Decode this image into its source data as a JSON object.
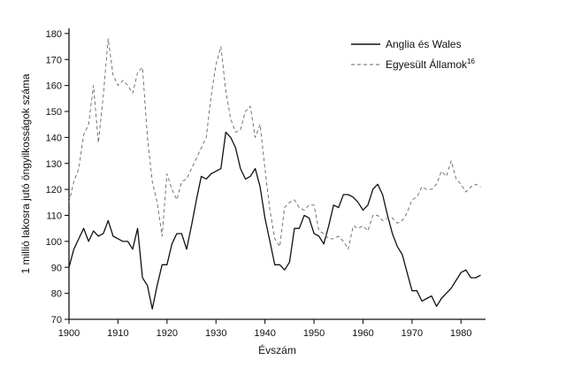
{
  "chart_data": {
    "type": "line",
    "xlabel": "Évszám",
    "ylabel": "1 millió lakosra jutó öngyilkosságok száma",
    "xlim": [
      1900,
      1985
    ],
    "ylim": [
      70,
      182
    ],
    "x_ticks": [
      1900,
      1910,
      1920,
      1930,
      1940,
      1950,
      1960,
      1970,
      1980
    ],
    "y_ticks": [
      70,
      80,
      90,
      100,
      110,
      120,
      130,
      140,
      150,
      160,
      170,
      180
    ],
    "legend_position": "top-right",
    "series": [
      {
        "name": "Anglia és Wales",
        "style": "solid",
        "color": "#111111",
        "x": [
          1900,
          1901,
          1902,
          1903,
          1904,
          1905,
          1906,
          1907,
          1908,
          1909,
          1910,
          1911,
          1912,
          1913,
          1914,
          1915,
          1916,
          1917,
          1918,
          1919,
          1920,
          1921,
          1922,
          1923,
          1924,
          1925,
          1926,
          1927,
          1928,
          1929,
          1930,
          1931,
          1932,
          1933,
          1934,
          1935,
          1936,
          1937,
          1938,
          1939,
          1940,
          1941,
          1942,
          1943,
          1944,
          1945,
          1946,
          1947,
          1948,
          1949,
          1950,
          1951,
          1952,
          1953,
          1954,
          1955,
          1956,
          1957,
          1958,
          1959,
          1960,
          1961,
          1962,
          1963,
          1964,
          1965,
          1966,
          1967,
          1968,
          1969,
          1970,
          1971,
          1972,
          1973,
          1974,
          1975,
          1976,
          1977,
          1978,
          1979,
          1980,
          1981,
          1982,
          1983,
          1984
        ],
        "y": [
          90,
          97,
          101,
          105,
          100,
          104,
          102,
          103,
          108,
          102,
          101,
          100,
          100,
          97,
          105,
          86,
          83,
          74,
          83,
          91,
          91,
          99,
          103,
          103,
          97,
          106,
          116,
          125,
          124,
          126,
          127,
          128,
          142,
          140,
          136,
          128,
          124,
          125,
          128,
          121,
          109,
          100,
          91,
          91,
          89,
          92,
          105,
          105,
          110,
          109,
          103,
          102,
          99,
          106,
          114,
          113,
          118,
          118,
          117,
          115,
          112,
          114,
          120,
          122,
          118,
          110,
          103,
          98,
          95,
          88,
          81,
          81,
          77,
          78,
          79,
          75,
          78,
          80,
          82,
          85,
          88,
          89,
          86,
          86,
          87
        ]
      },
      {
        "name": "Egyesült Államok",
        "name_superscript": "16",
        "style": "dashed",
        "color": "#666666",
        "x": [
          1900,
          1901,
          1902,
          1903,
          1904,
          1905,
          1906,
          1907,
          1908,
          1909,
          1910,
          1911,
          1912,
          1913,
          1914,
          1915,
          1916,
          1917,
          1918,
          1919,
          1920,
          1921,
          1922,
          1923,
          1924,
          1925,
          1926,
          1927,
          1928,
          1929,
          1930,
          1931,
          1932,
          1933,
          1934,
          1935,
          1936,
          1937,
          1938,
          1939,
          1940,
          1941,
          1942,
          1943,
          1944,
          1945,
          1946,
          1947,
          1948,
          1949,
          1950,
          1951,
          1952,
          1953,
          1954,
          1955,
          1956,
          1957,
          1958,
          1959,
          1960,
          1961,
          1962,
          1963,
          1964,
          1965,
          1966,
          1967,
          1968,
          1969,
          1970,
          1971,
          1972,
          1973,
          1974,
          1975,
          1976,
          1977,
          1978,
          1979,
          1980,
          1981,
          1982,
          1983,
          1984
        ],
        "y": [
          115,
          123,
          128,
          141,
          145,
          160,
          138,
          156,
          178,
          164,
          160,
          162,
          160,
          157,
          165,
          167,
          140,
          123,
          115,
          102,
          126,
          120,
          116,
          123,
          124,
          128,
          132,
          136,
          140,
          156,
          168,
          175,
          158,
          147,
          142,
          143,
          150,
          152,
          140,
          145,
          128,
          112,
          101,
          98,
          113,
          115,
          116,
          113,
          112,
          114,
          114,
          104,
          103,
          101,
          101,
          102,
          100,
          97,
          106,
          105,
          106,
          104,
          110,
          110,
          108,
          109,
          109,
          107,
          108,
          111,
          116,
          117,
          121,
          120,
          120,
          122,
          127,
          125,
          131,
          124,
          122,
          119,
          121,
          122,
          121
        ]
      }
    ]
  }
}
